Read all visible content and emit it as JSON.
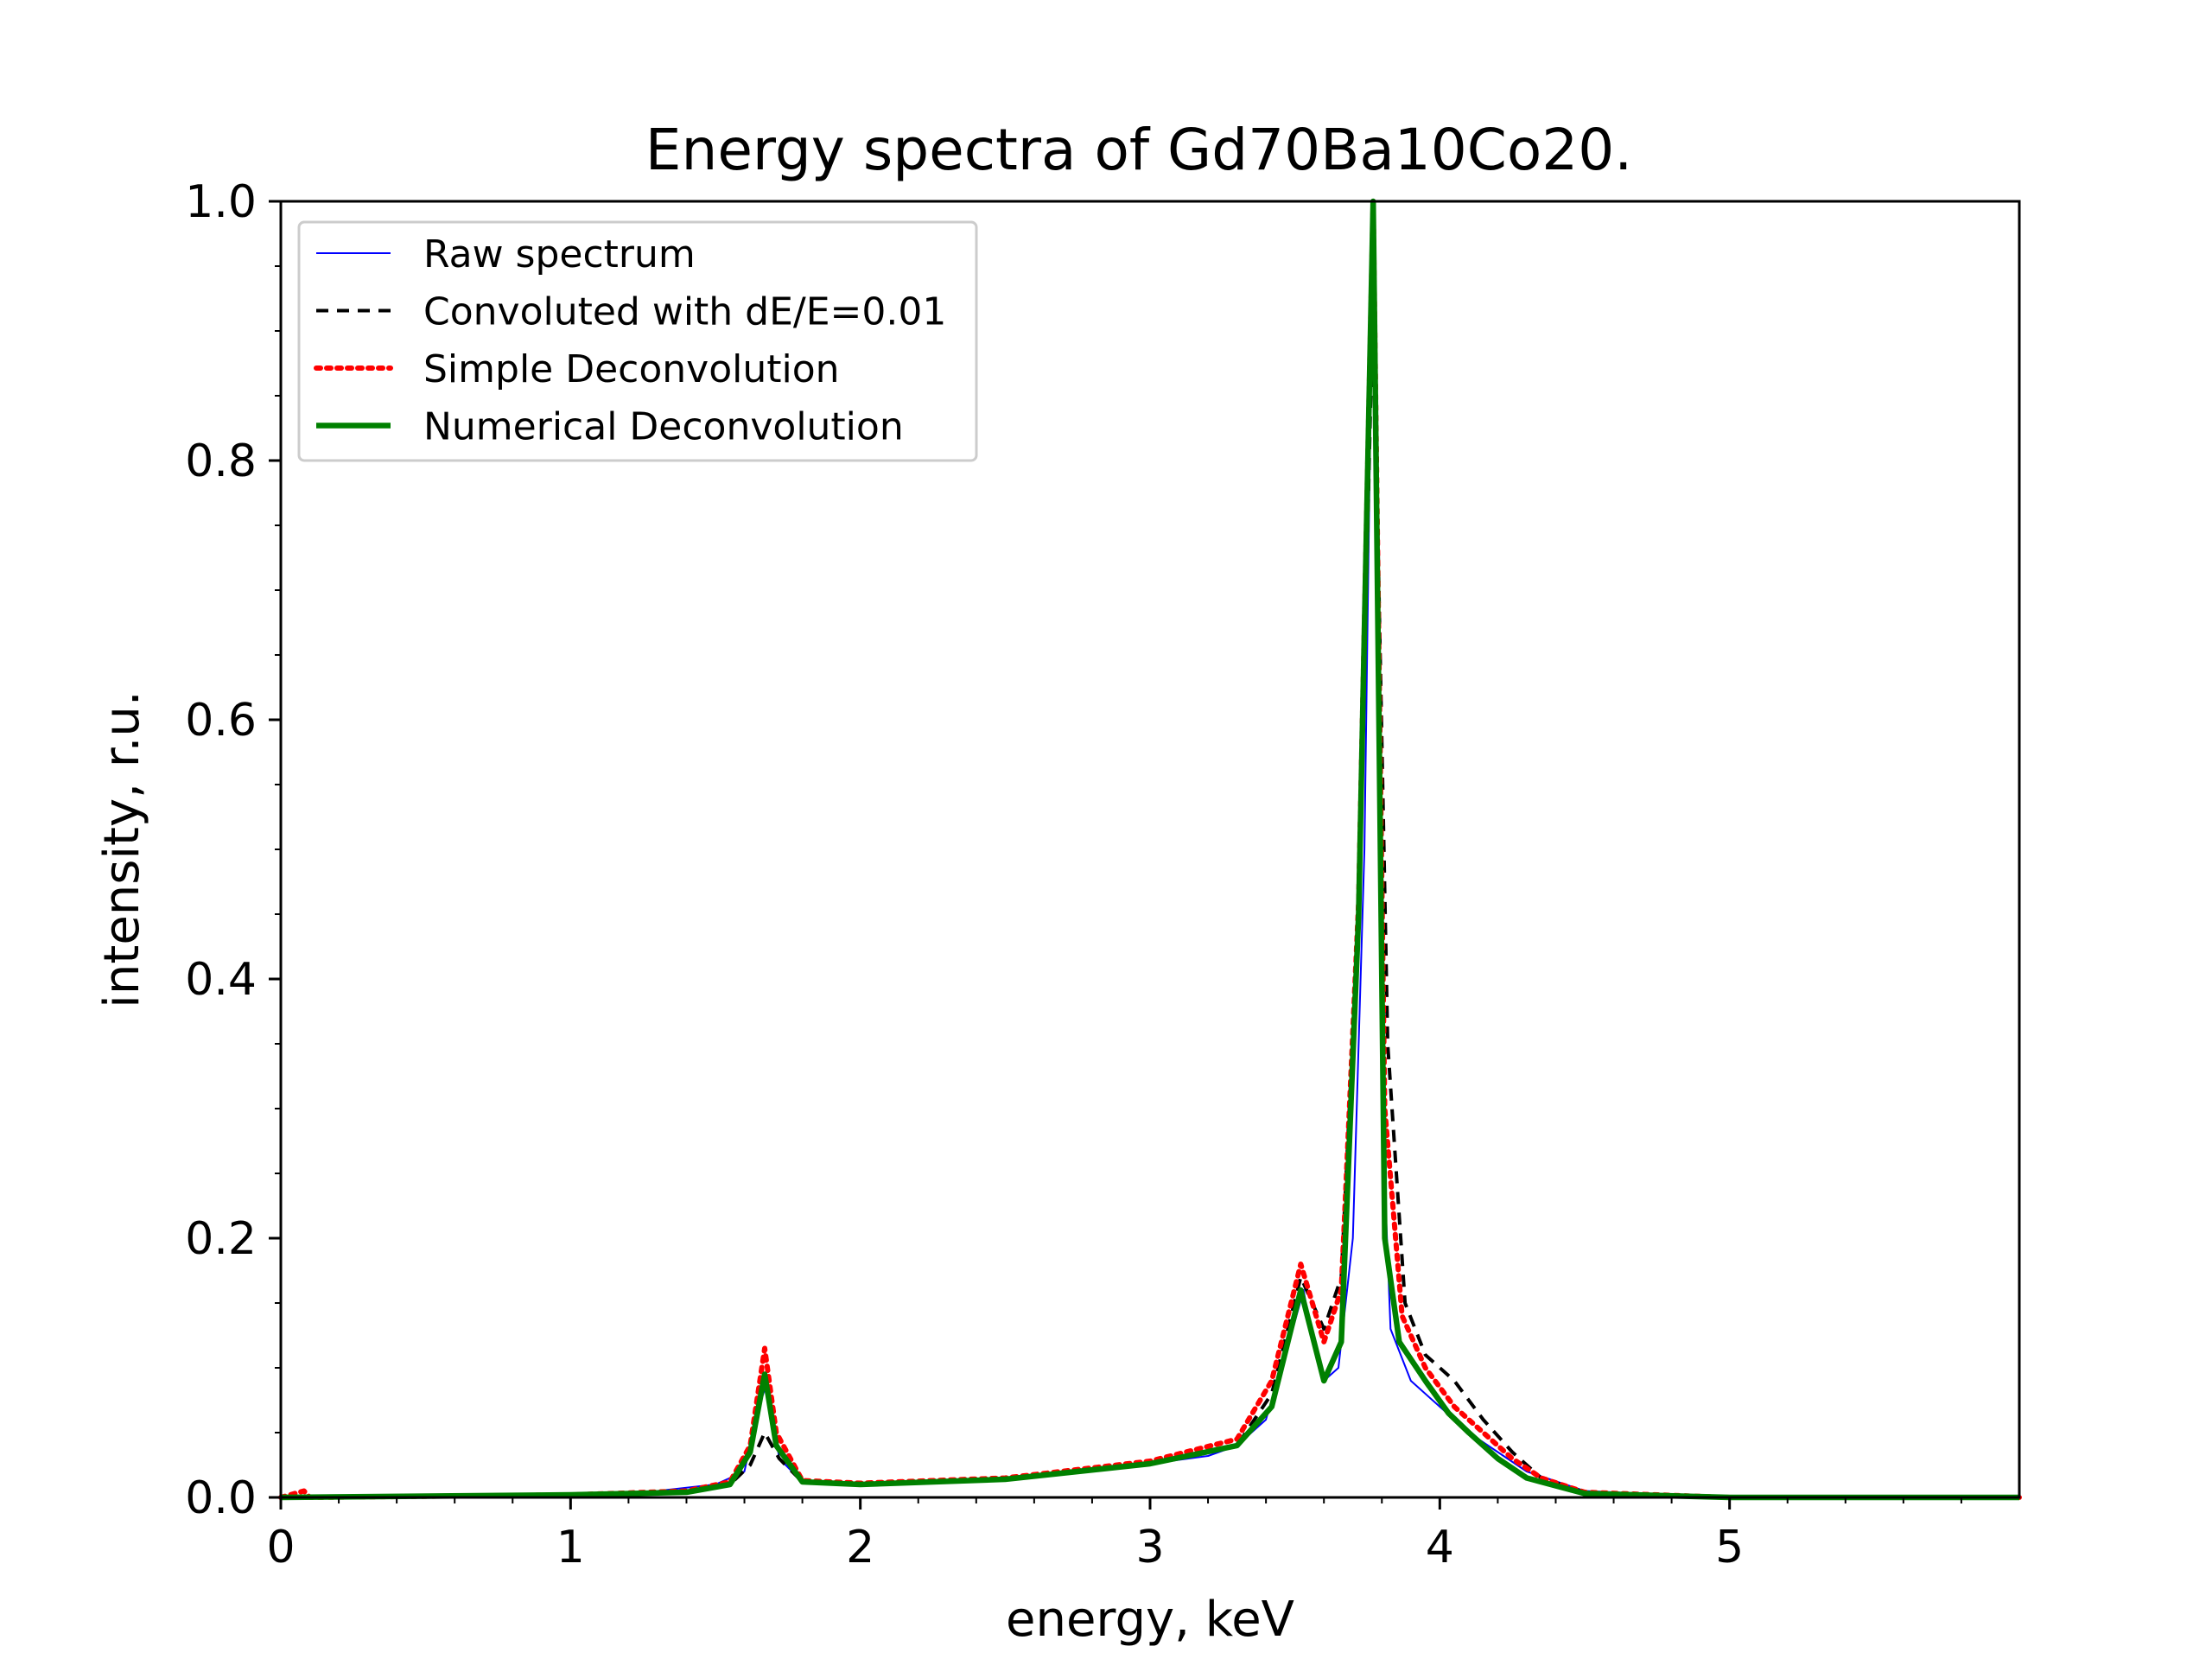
{
  "chart_data": {
    "type": "line",
    "title": "Energy spectra of Gd70Ba10Co20.",
    "xlabel": "energy, keV",
    "ylabel": "intensity, r.u.",
    "xlim": [
      0,
      6.0
    ],
    "ylim": [
      0,
      1.0
    ],
    "xticks": [
      0,
      1,
      2,
      3,
      4,
      5
    ],
    "xtick_labels": [
      "0",
      "1",
      "2",
      "3",
      "4",
      "5"
    ],
    "yticks": [
      0.0,
      0.2,
      0.4,
      0.6,
      0.8,
      1.0
    ],
    "ytick_labels": [
      "0.0",
      "0.2",
      "0.4",
      "0.6",
      "0.8",
      "1.0"
    ],
    "grid": false,
    "legend_position": "top-left",
    "series": [
      {
        "name": "Raw spectrum",
        "color": "#0000ff",
        "style": "solid-thin",
        "points": [
          [
            0,
            0.0
          ],
          [
            1.0,
            0.002
          ],
          [
            1.3,
            0.005
          ],
          [
            1.5,
            0.01
          ],
          [
            1.6,
            0.02
          ],
          [
            1.65,
            0.07
          ],
          [
            1.68,
            0.09
          ],
          [
            1.72,
            0.03
          ],
          [
            1.8,
            0.012
          ],
          [
            2.0,
            0.01
          ],
          [
            2.5,
            0.014
          ],
          [
            2.8,
            0.02
          ],
          [
            3.0,
            0.026
          ],
          [
            3.2,
            0.032
          ],
          [
            3.3,
            0.04
          ],
          [
            3.4,
            0.06
          ],
          [
            3.48,
            0.12
          ],
          [
            3.53,
            0.16
          ],
          [
            3.56,
            0.12
          ],
          [
            3.6,
            0.09
          ],
          [
            3.65,
            0.1
          ],
          [
            3.7,
            0.2
          ],
          [
            3.74,
            0.5
          ],
          [
            3.77,
            0.99
          ],
          [
            3.8,
            0.3
          ],
          [
            3.83,
            0.13
          ],
          [
            3.9,
            0.09
          ],
          [
            4.0,
            0.07
          ],
          [
            4.1,
            0.05
          ],
          [
            4.2,
            0.035
          ],
          [
            4.3,
            0.02
          ],
          [
            4.5,
            0.005
          ],
          [
            5.0,
            0.0
          ],
          [
            6.0,
            0.0
          ]
        ]
      },
      {
        "name": "Convoluted with dE/E=0.01",
        "color": "#000000",
        "style": "dashed",
        "points": [
          [
            0,
            0.0
          ],
          [
            1.0,
            0.001
          ],
          [
            1.4,
            0.004
          ],
          [
            1.55,
            0.01
          ],
          [
            1.62,
            0.025
          ],
          [
            1.67,
            0.05
          ],
          [
            1.72,
            0.03
          ],
          [
            1.8,
            0.012
          ],
          [
            2.0,
            0.01
          ],
          [
            2.5,
            0.014
          ],
          [
            3.0,
            0.026
          ],
          [
            3.3,
            0.04
          ],
          [
            3.42,
            0.08
          ],
          [
            3.52,
            0.17
          ],
          [
            3.6,
            0.13
          ],
          [
            3.66,
            0.17
          ],
          [
            3.72,
            0.45
          ],
          [
            3.77,
            0.93
          ],
          [
            3.82,
            0.35
          ],
          [
            3.88,
            0.15
          ],
          [
            3.95,
            0.11
          ],
          [
            4.05,
            0.09
          ],
          [
            4.15,
            0.06
          ],
          [
            4.25,
            0.035
          ],
          [
            4.35,
            0.015
          ],
          [
            4.5,
            0.004
          ],
          [
            5.0,
            0.0
          ],
          [
            6.0,
            0.0
          ]
        ]
      },
      {
        "name": "Simple Deconvolution",
        "color": "#ff0000",
        "style": "dotted",
        "points": [
          [
            0,
            0.0
          ],
          [
            0.08,
            0.005
          ],
          [
            0.1,
            0.0
          ],
          [
            1.0,
            0.002
          ],
          [
            1.4,
            0.005
          ],
          [
            1.55,
            0.012
          ],
          [
            1.62,
            0.04
          ],
          [
            1.67,
            0.115
          ],
          [
            1.71,
            0.05
          ],
          [
            1.8,
            0.013
          ],
          [
            2.0,
            0.011
          ],
          [
            2.5,
            0.015
          ],
          [
            3.0,
            0.028
          ],
          [
            3.3,
            0.045
          ],
          [
            3.42,
            0.09
          ],
          [
            3.52,
            0.18
          ],
          [
            3.6,
            0.12
          ],
          [
            3.66,
            0.16
          ],
          [
            3.72,
            0.46
          ],
          [
            3.77,
            1.0
          ],
          [
            3.81,
            0.3
          ],
          [
            3.87,
            0.14
          ],
          [
            3.95,
            0.1
          ],
          [
            4.05,
            0.07
          ],
          [
            4.15,
            0.05
          ],
          [
            4.25,
            0.03
          ],
          [
            4.35,
            0.015
          ],
          [
            4.5,
            0.004
          ],
          [
            5.0,
            0.0
          ],
          [
            6.0,
            0.0
          ]
        ]
      },
      {
        "name": "Numerical Deconvolution",
        "color": "#008000",
        "style": "solid-thick",
        "points": [
          [
            0,
            0.0
          ],
          [
            1.0,
            0.002
          ],
          [
            1.4,
            0.004
          ],
          [
            1.55,
            0.01
          ],
          [
            1.62,
            0.035
          ],
          [
            1.67,
            0.095
          ],
          [
            1.71,
            0.04
          ],
          [
            1.8,
            0.012
          ],
          [
            2.0,
            0.01
          ],
          [
            2.5,
            0.014
          ],
          [
            3.0,
            0.026
          ],
          [
            3.3,
            0.04
          ],
          [
            3.42,
            0.07
          ],
          [
            3.52,
            0.16
          ],
          [
            3.6,
            0.09
          ],
          [
            3.66,
            0.12
          ],
          [
            3.72,
            0.45
          ],
          [
            3.77,
            1.0
          ],
          [
            3.81,
            0.2
          ],
          [
            3.86,
            0.12
          ],
          [
            3.95,
            0.09
          ],
          [
            4.03,
            0.065
          ],
          [
            4.1,
            0.05
          ],
          [
            4.2,
            0.03
          ],
          [
            4.3,
            0.015
          ],
          [
            4.5,
            0.003
          ],
          [
            5.0,
            0.0
          ],
          [
            6.0,
            0.0
          ]
        ]
      }
    ]
  }
}
